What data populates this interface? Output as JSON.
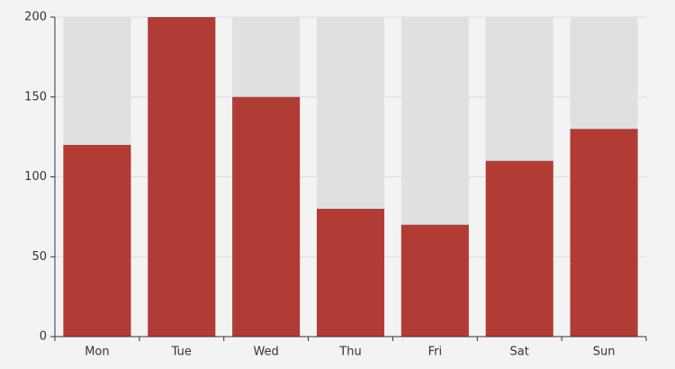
{
  "chart_data": {
    "type": "bar",
    "categories": [
      "Mon",
      "Tue",
      "Wed",
      "Thu",
      "Fri",
      "Sat",
      "Sun"
    ],
    "values": [
      120,
      200,
      150,
      80,
      70,
      110,
      130
    ],
    "color": "#b13c36",
    "background_color": "#e0e0e0",
    "ylim": [
      0,
      200
    ],
    "yticks": [
      0,
      50,
      100,
      150,
      200
    ],
    "grid": true
  }
}
